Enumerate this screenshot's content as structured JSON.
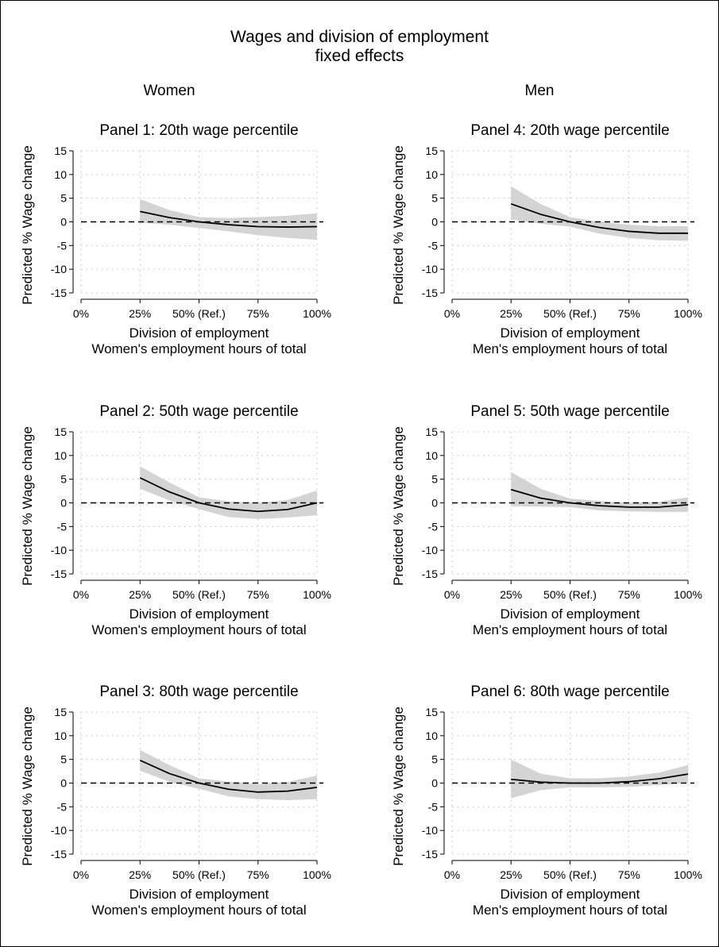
{
  "figure": {
    "title_line1": "Wages and division of employment",
    "title_line2": "fixed effects",
    "col_women": "Women",
    "col_men": "Men"
  },
  "colors": {
    "line": "#000000",
    "band": "#d4d4d4",
    "grid": "#bfbfbf"
  },
  "chart_data": [
    {
      "type": "line",
      "panel": 1,
      "title": "Panel 1: 20th wage percentile",
      "ylabel": "Predicted % Wage change",
      "xlabel_line1": "Division of employment",
      "xlabel_line2": "Women's employment hours of total",
      "x_ticks": [
        "0%",
        "25%",
        "50% (Ref.)",
        "75%",
        "100%"
      ],
      "y_ticks": [
        "15",
        "10",
        "5",
        "0",
        "-5",
        "-10",
        "-15"
      ],
      "xlim": [
        0,
        100
      ],
      "ylim": [
        -15,
        15
      ],
      "reference_line_y": 0,
      "series": [
        {
          "x": [
            25,
            37.5,
            50,
            62.5,
            75,
            87.5,
            100
          ],
          "y": [
            2.2,
            0.9,
            0.0,
            -0.6,
            -1.0,
            -1.1,
            -1.0
          ],
          "ci_low": [
            -0.2,
            -0.6,
            -1.3,
            -2.0,
            -2.8,
            -3.4,
            -3.8
          ],
          "ci_high": [
            4.8,
            2.5,
            1.0,
            0.8,
            1.0,
            1.3,
            1.8
          ]
        }
      ]
    },
    {
      "type": "line",
      "panel": 2,
      "title": "Panel 2: 50th wage percentile",
      "ylabel": "Predicted % Wage change",
      "xlabel_line1": "Division of employment",
      "xlabel_line2": "Women's employment hours of total",
      "x_ticks": [
        "0%",
        "25%",
        "50% (Ref.)",
        "75%",
        "100%"
      ],
      "y_ticks": [
        "15",
        "10",
        "5",
        "0",
        "-5",
        "-10",
        "-15"
      ],
      "xlim": [
        0,
        100
      ],
      "ylim": [
        -15,
        15
      ],
      "reference_line_y": 0,
      "series": [
        {
          "x": [
            25,
            37.5,
            50,
            62.5,
            75,
            87.5,
            100
          ],
          "y": [
            5.3,
            2.3,
            0.0,
            -1.3,
            -1.8,
            -1.4,
            0.0
          ],
          "ci_low": [
            3.0,
            0.5,
            -1.3,
            -3.0,
            -3.4,
            -3.1,
            -2.6
          ],
          "ci_high": [
            7.7,
            4.3,
            1.2,
            0.3,
            0.0,
            0.6,
            2.6
          ]
        }
      ]
    },
    {
      "type": "line",
      "panel": 3,
      "title": "Panel 3: 80th wage percentile",
      "ylabel": "Predicted % Wage change",
      "xlabel_line1": "Division of employment",
      "xlabel_line2": "Women's employment hours of total",
      "x_ticks": [
        "0%",
        "25%",
        "50% (Ref.)",
        "75%",
        "100%"
      ],
      "y_ticks": [
        "15",
        "10",
        "5",
        "0",
        "-5",
        "-10",
        "-15"
      ],
      "xlim": [
        0,
        100
      ],
      "ylim": [
        -15,
        15
      ],
      "reference_line_y": 0,
      "series": [
        {
          "x": [
            25,
            37.5,
            50,
            62.5,
            75,
            87.5,
            100
          ],
          "y": [
            4.8,
            2.0,
            0.0,
            -1.3,
            -1.9,
            -1.7,
            -0.9
          ],
          "ci_low": [
            2.6,
            0.3,
            -1.2,
            -2.8,
            -3.4,
            -3.6,
            -3.4
          ],
          "ci_high": [
            7.0,
            3.8,
            1.0,
            0.3,
            -0.3,
            0.2,
            1.6
          ]
        }
      ]
    },
    {
      "type": "line",
      "panel": 4,
      "title": "Panel 4: 20th wage percentile",
      "ylabel": "Predicted % Wage change",
      "xlabel_line1": "Division of employment",
      "xlabel_line2": "Men's employment hours of total",
      "x_ticks": [
        "0%",
        "25%",
        "50% (Ref.)",
        "75%",
        "100%"
      ],
      "y_ticks": [
        "15",
        "10",
        "5",
        "0",
        "-5",
        "-10",
        "-15"
      ],
      "xlim": [
        0,
        100
      ],
      "ylim": [
        -15,
        15
      ],
      "reference_line_y": 0,
      "series": [
        {
          "x": [
            25,
            37.5,
            50,
            62.5,
            75,
            87.5,
            100
          ],
          "y": [
            3.8,
            1.6,
            0.0,
            -1.2,
            -2.0,
            -2.4,
            -2.4
          ],
          "ci_low": [
            0.5,
            -0.4,
            -1.0,
            -2.5,
            -3.4,
            -3.9,
            -4.0
          ],
          "ci_high": [
            7.5,
            3.8,
            1.0,
            0.0,
            -0.6,
            -0.9,
            -0.9
          ]
        }
      ]
    },
    {
      "type": "line",
      "panel": 5,
      "title": "Panel 5: 50th wage percentile",
      "ylabel": "Predicted % Wage change",
      "xlabel_line1": "Division of employment",
      "xlabel_line2": "Men's employment hours of total",
      "x_ticks": [
        "0%",
        "25%",
        "50% (Ref.)",
        "75%",
        "100%"
      ],
      "y_ticks": [
        "15",
        "10",
        "5",
        "0",
        "-5",
        "-10",
        "-15"
      ],
      "xlim": [
        0,
        100
      ],
      "ylim": [
        -15,
        15
      ],
      "reference_line_y": 0,
      "series": [
        {
          "x": [
            25,
            37.5,
            50,
            62.5,
            75,
            87.5,
            100
          ],
          "y": [
            2.8,
            1.0,
            0.0,
            -0.6,
            -0.9,
            -0.9,
            -0.4
          ],
          "ci_low": [
            -0.7,
            -0.8,
            -0.9,
            -1.6,
            -1.8,
            -1.9,
            -1.9
          ],
          "ci_high": [
            6.5,
            3.0,
            0.9,
            0.4,
            0.0,
            0.2,
            1.2
          ]
        }
      ]
    },
    {
      "type": "line",
      "panel": 6,
      "title": "Panel 6: 80th wage percentile",
      "ylabel": "Predicted % Wage change",
      "xlabel_line1": "Division of employment",
      "xlabel_line2": "Men's employment hours of total",
      "x_ticks": [
        "0%",
        "25%",
        "50% (Ref.)",
        "75%",
        "100%"
      ],
      "y_ticks": [
        "15",
        "10",
        "5",
        "0",
        "-5",
        "-10",
        "-15"
      ],
      "xlim": [
        0,
        100
      ],
      "ylim": [
        -15,
        15
      ],
      "reference_line_y": 0,
      "series": [
        {
          "x": [
            25,
            37.5,
            50,
            62.5,
            75,
            87.5,
            100
          ],
          "y": [
            0.8,
            0.2,
            0.0,
            0.0,
            0.3,
            0.9,
            1.9
          ],
          "ci_low": [
            -3.2,
            -1.5,
            -0.9,
            -0.9,
            -0.8,
            -0.4,
            0.0
          ],
          "ci_high": [
            5.0,
            2.0,
            1.0,
            1.0,
            1.4,
            2.2,
            3.8
          ]
        }
      ]
    }
  ]
}
